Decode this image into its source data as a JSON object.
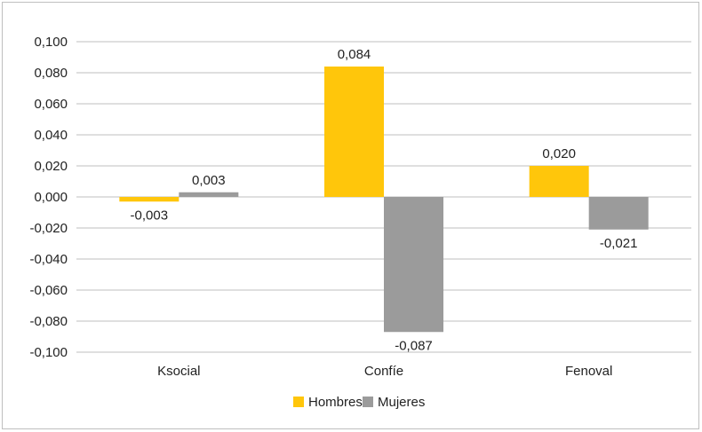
{
  "chart_data": {
    "type": "bar",
    "categories": [
      "Ksocial",
      "Confíe",
      "Fenoval"
    ],
    "series": [
      {
        "name": "Hombres",
        "color": "#FFC60B",
        "values": [
          -0.003,
          0.084,
          0.02
        ],
        "labels": [
          "-0,003",
          "0,084",
          "0,020"
        ]
      },
      {
        "name": "Mujeres",
        "color": "#9B9B9B",
        "values": [
          0.003,
          -0.087,
          -0.021
        ],
        "labels": [
          "0,003",
          "-0,087",
          "-0,021"
        ]
      }
    ],
    "ylim": [
      -0.1,
      0.1
    ],
    "yticks": [
      {
        "value": 0.1,
        "label": "0,100"
      },
      {
        "value": 0.08,
        "label": "0,080"
      },
      {
        "value": 0.06,
        "label": "0,060"
      },
      {
        "value": 0.04,
        "label": "0,040"
      },
      {
        "value": 0.02,
        "label": "0,020"
      },
      {
        "value": 0.0,
        "label": "0,000"
      },
      {
        "value": -0.02,
        "label": "-0,020"
      },
      {
        "value": -0.04,
        "label": "-0,040"
      },
      {
        "value": -0.06,
        "label": "-0,060"
      },
      {
        "value": -0.08,
        "label": "-0,080"
      },
      {
        "value": -0.1,
        "label": "-0,100"
      }
    ],
    "grid": true,
    "gridColor": "#bfbfbf",
    "legend": "bottom-center"
  }
}
